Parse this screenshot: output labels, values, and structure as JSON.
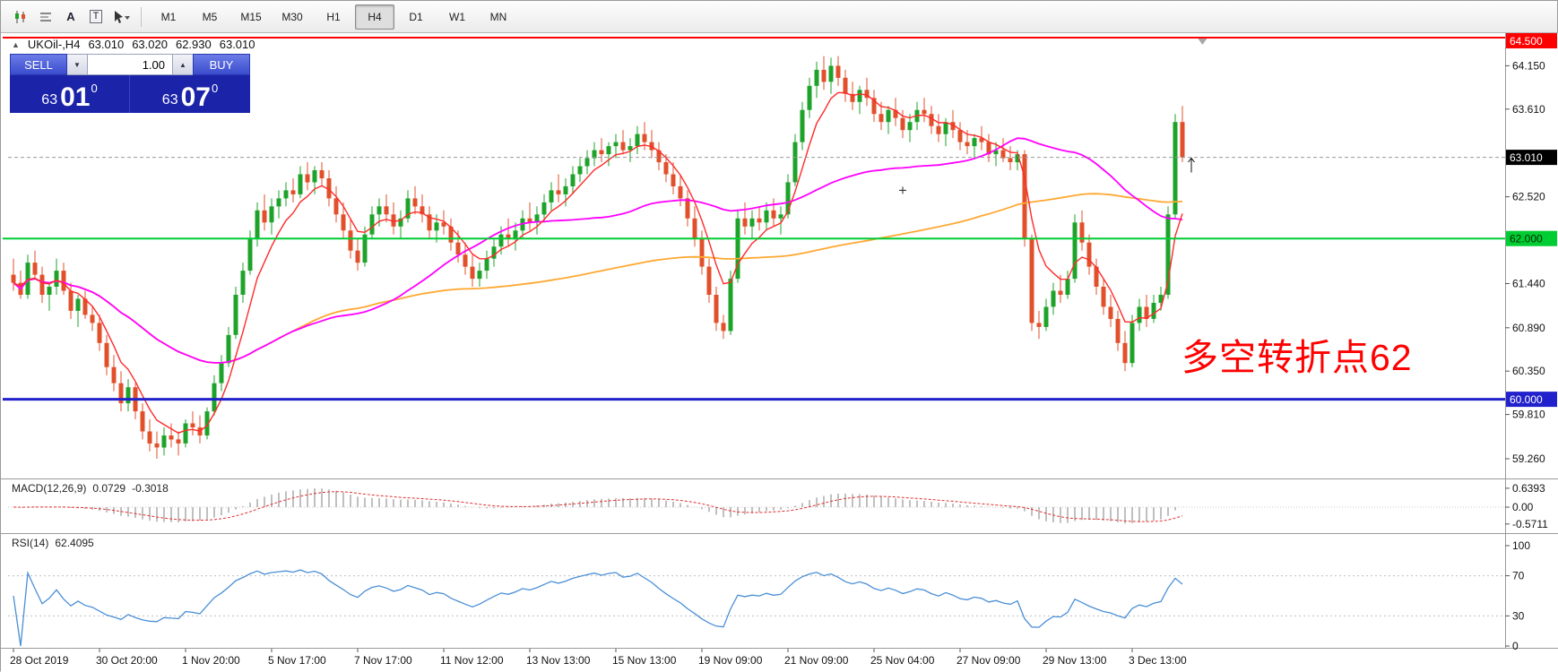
{
  "toolbar": {
    "tool_icons": [
      {
        "name": "candlestick-chart-icon"
      },
      {
        "name": "bar-chart-icon"
      },
      {
        "name": "text-tool-icon",
        "glyph": "A"
      },
      {
        "name": "textbox-tool-icon",
        "glyph": "T"
      },
      {
        "name": "cursor-tool-icon"
      }
    ],
    "timeframes": [
      {
        "label": "M1",
        "active": false
      },
      {
        "label": "M5",
        "active": false
      },
      {
        "label": "M15",
        "active": false
      },
      {
        "label": "M30",
        "active": false
      },
      {
        "label": "H1",
        "active": false
      },
      {
        "label": "H4",
        "active": true
      },
      {
        "label": "D1",
        "active": false
      },
      {
        "label": "W1",
        "active": false
      },
      {
        "label": "MN",
        "active": false
      }
    ]
  },
  "chart": {
    "symbol": "UKOil-,H4",
    "ohlc": {
      "open": "63.010",
      "high": "63.020",
      "low": "62.930",
      "close": "63.010"
    },
    "trade_panel": {
      "sell_label": "SELL",
      "buy_label": "BUY",
      "volume": "1.00",
      "bid": {
        "prefix": "63",
        "big": "01",
        "sup": "0"
      },
      "ask": {
        "prefix": "63",
        "big": "07",
        "sup": "0"
      }
    },
    "annotation": {
      "text": "多空转折点62",
      "color": "#ff0000"
    },
    "hlines": [
      {
        "price": 64.5,
        "color": "#ff0000",
        "w": 2
      },
      {
        "price": 62.0,
        "color": "#00cc33",
        "w": 2
      },
      {
        "price": 60.0,
        "color": "#2222cc",
        "w": 3
      }
    ],
    "bid_line": {
      "price": 63.01,
      "color": "#999999"
    },
    "price_axis": {
      "ticks": [
        {
          "price": 64.15,
          "label": "64.150"
        },
        {
          "price": 63.61,
          "label": "63.610"
        },
        {
          "price": 62.52,
          "label": "62.520"
        },
        {
          "price": 61.44,
          "label": "61.440"
        },
        {
          "price": 60.89,
          "label": "60.890"
        },
        {
          "price": 60.35,
          "label": "60.350"
        },
        {
          "price": 59.81,
          "label": "59.810"
        },
        {
          "price": 59.26,
          "label": "59.260"
        }
      ],
      "badges": [
        {
          "price": 64.5,
          "label": "64.500",
          "bg": "#ff0000",
          "fg": "#ffffff"
        },
        {
          "price": 63.01,
          "label": "63.010",
          "bg": "#000000",
          "fg": "#ffffff"
        },
        {
          "price": 62.0,
          "label": "62.000",
          "bg": "#00cc33",
          "fg": "#002b00"
        },
        {
          "price": 60.0,
          "label": "60.000",
          "bg": "#2222cc",
          "fg": "#ffffff"
        }
      ]
    },
    "markers": [
      {
        "type": "up-arrow",
        "candle": 163,
        "price": 63.0
      },
      {
        "type": "cross",
        "candle": 124,
        "price": 62.6
      },
      {
        "type": "shift-triangle",
        "x_candle": 165.8
      }
    ],
    "colors": {
      "up": "#1ea32a",
      "down": "#e1502b",
      "ma_fast": "#ff2a2a",
      "ma_mid": "#ff00ff",
      "ma_slow": "#ffa832",
      "macd_hist": "#c0c0c0",
      "macd_signal": "#e03030",
      "rsi": "#4a8fd6"
    }
  },
  "macd": {
    "title": "MACD(12,26,9)",
    "value_hist": "0.0729",
    "value_signal": "-0.3018",
    "fast": 12,
    "slow": 26,
    "signal": 9,
    "axis": [
      {
        "v": 0.6393,
        "label": "0.6393"
      },
      {
        "v": 0,
        "label": "0.00"
      },
      {
        "v": -0.5711,
        "label": "-0.5711"
      }
    ]
  },
  "rsi": {
    "title": "RSI(14)",
    "value": "62.4095",
    "period": 14,
    "levels": [
      70,
      30
    ],
    "axis": [
      {
        "v": 100,
        "label": "100"
      },
      {
        "v": 70,
        "label": "70"
      },
      {
        "v": 30,
        "label": "30"
      },
      {
        "v": 0,
        "label": "0"
      }
    ]
  },
  "chart_data": {
    "type": "candlestick",
    "symbol": "UKOil-",
    "timeframe": "H4",
    "ohlc_format": "[open, high, low, close]",
    "time_labels": [
      {
        "i": 0,
        "label": "28 Oct 2019"
      },
      {
        "i": 12,
        "label": "30 Oct 20:00"
      },
      {
        "i": 24,
        "label": "1 Nov 20:00"
      },
      {
        "i": 36,
        "label": "5 Nov 17:00"
      },
      {
        "i": 48,
        "label": "7 Nov 17:00"
      },
      {
        "i": 60,
        "label": "11 Nov 12:00"
      },
      {
        "i": 72,
        "label": "13 Nov 13:00"
      },
      {
        "i": 84,
        "label": "15 Nov 13:00"
      },
      {
        "i": 96,
        "label": "19 Nov 09:00"
      },
      {
        "i": 108,
        "label": "21 Nov 09:00"
      },
      {
        "i": 120,
        "label": "25 Nov 04:00"
      },
      {
        "i": 132,
        "label": "27 Nov 09:00"
      },
      {
        "i": 144,
        "label": "29 Nov 13:00"
      },
      {
        "i": 156,
        "label": "3 Dec 13:00"
      }
    ],
    "candles": [
      [
        61.55,
        61.75,
        61.35,
        61.45
      ],
      [
        61.45,
        61.6,
        61.25,
        61.3
      ],
      [
        61.3,
        61.8,
        61.25,
        61.7
      ],
      [
        61.7,
        61.85,
        61.5,
        61.55
      ],
      [
        61.55,
        61.65,
        61.2,
        61.3
      ],
      [
        61.3,
        61.45,
        61.1,
        61.4
      ],
      [
        61.4,
        61.75,
        61.3,
        61.6
      ],
      [
        61.6,
        61.7,
        61.3,
        61.35
      ],
      [
        61.35,
        61.45,
        61.0,
        61.1
      ],
      [
        61.1,
        61.3,
        60.9,
        61.25
      ],
      [
        61.25,
        61.35,
        61.0,
        61.05
      ],
      [
        61.05,
        61.15,
        60.85,
        60.95
      ],
      [
        60.95,
        61.05,
        60.6,
        60.7
      ],
      [
        60.7,
        60.8,
        60.3,
        60.4
      ],
      [
        60.4,
        60.55,
        60.1,
        60.2
      ],
      [
        60.2,
        60.35,
        59.85,
        59.95
      ],
      [
        59.95,
        60.25,
        59.85,
        60.15
      ],
      [
        60.15,
        60.2,
        59.75,
        59.85
      ],
      [
        59.85,
        59.95,
        59.5,
        59.6
      ],
      [
        59.6,
        59.75,
        59.35,
        59.45
      ],
      [
        59.45,
        59.6,
        59.26,
        59.4
      ],
      [
        59.4,
        59.65,
        59.3,
        59.55
      ],
      [
        59.55,
        59.7,
        59.4,
        59.5
      ],
      [
        59.5,
        59.6,
        59.3,
        59.45
      ],
      [
        59.45,
        59.75,
        59.4,
        59.7
      ],
      [
        59.7,
        59.85,
        59.55,
        59.65
      ],
      [
        59.65,
        59.8,
        59.45,
        59.55
      ],
      [
        59.55,
        59.9,
        59.5,
        59.85
      ],
      [
        59.85,
        60.3,
        59.8,
        60.2
      ],
      [
        60.2,
        60.55,
        60.1,
        60.45
      ],
      [
        60.45,
        60.9,
        60.4,
        60.8
      ],
      [
        60.8,
        61.4,
        60.75,
        61.3
      ],
      [
        61.3,
        61.7,
        61.2,
        61.6
      ],
      [
        61.6,
        62.1,
        61.55,
        62.0
      ],
      [
        62.0,
        62.45,
        61.9,
        62.35
      ],
      [
        62.35,
        62.55,
        62.1,
        62.2
      ],
      [
        62.2,
        62.5,
        62.05,
        62.4
      ],
      [
        62.4,
        62.6,
        62.25,
        62.5
      ],
      [
        62.5,
        62.7,
        62.4,
        62.6
      ],
      [
        62.6,
        62.75,
        62.45,
        62.55
      ],
      [
        62.55,
        62.9,
        62.5,
        62.8
      ],
      [
        62.8,
        62.95,
        62.6,
        62.7
      ],
      [
        62.7,
        62.9,
        62.55,
        62.85
      ],
      [
        62.85,
        62.95,
        62.65,
        62.75
      ],
      [
        62.75,
        62.85,
        62.4,
        62.5
      ],
      [
        62.5,
        62.65,
        62.2,
        62.3
      ],
      [
        62.3,
        62.45,
        62.0,
        62.1
      ],
      [
        62.1,
        62.25,
        61.75,
        61.85
      ],
      [
        61.85,
        62.0,
        61.6,
        61.7
      ],
      [
        61.7,
        62.15,
        61.65,
        62.05
      ],
      [
        62.05,
        62.4,
        62.0,
        62.3
      ],
      [
        62.3,
        62.5,
        62.15,
        62.4
      ],
      [
        62.4,
        62.55,
        62.2,
        62.3
      ],
      [
        62.3,
        62.45,
        62.05,
        62.15
      ],
      [
        62.15,
        62.35,
        62.0,
        62.25
      ],
      [
        62.25,
        62.6,
        62.2,
        62.5
      ],
      [
        62.5,
        62.65,
        62.3,
        62.4
      ],
      [
        62.4,
        62.55,
        62.2,
        62.3
      ],
      [
        62.3,
        62.4,
        62.0,
        62.1
      ],
      [
        62.1,
        62.3,
        61.95,
        62.2
      ],
      [
        62.2,
        62.35,
        62.05,
        62.15
      ],
      [
        62.15,
        62.25,
        61.85,
        61.95
      ],
      [
        61.95,
        62.1,
        61.7,
        61.8
      ],
      [
        61.8,
        61.95,
        61.55,
        61.65
      ],
      [
        61.65,
        61.8,
        61.4,
        61.5
      ],
      [
        61.5,
        61.7,
        61.4,
        61.6
      ],
      [
        61.6,
        61.85,
        61.5,
        61.75
      ],
      [
        61.75,
        62.0,
        61.65,
        61.9
      ],
      [
        61.9,
        62.15,
        61.8,
        62.05
      ],
      [
        62.05,
        62.25,
        61.9,
        62.0
      ],
      [
        62.0,
        62.2,
        61.85,
        62.1
      ],
      [
        62.1,
        62.35,
        62.0,
        62.25
      ],
      [
        62.25,
        62.45,
        62.1,
        62.2
      ],
      [
        62.2,
        62.4,
        62.05,
        62.3
      ],
      [
        62.3,
        62.55,
        62.2,
        62.45
      ],
      [
        62.45,
        62.7,
        62.35,
        62.6
      ],
      [
        62.6,
        62.8,
        62.45,
        62.55
      ],
      [
        62.55,
        62.75,
        62.4,
        62.65
      ],
      [
        62.65,
        62.9,
        62.55,
        62.8
      ],
      [
        62.8,
        63.0,
        62.7,
        62.9
      ],
      [
        62.9,
        63.1,
        62.8,
        63.0
      ],
      [
        63.0,
        63.2,
        62.9,
        63.1
      ],
      [
        63.1,
        63.25,
        62.95,
        63.05
      ],
      [
        63.05,
        63.2,
        62.9,
        63.15
      ],
      [
        63.15,
        63.3,
        63.0,
        63.2
      ],
      [
        63.2,
        63.35,
        63.05,
        63.1
      ],
      [
        63.1,
        63.25,
        62.95,
        63.15
      ],
      [
        63.15,
        63.4,
        63.05,
        63.3
      ],
      [
        63.3,
        63.45,
        63.1,
        63.2
      ],
      [
        63.2,
        63.35,
        63.0,
        63.1
      ],
      [
        63.1,
        63.2,
        62.85,
        62.95
      ],
      [
        62.95,
        63.05,
        62.7,
        62.8
      ],
      [
        62.8,
        62.95,
        62.55,
        62.65
      ],
      [
        62.65,
        62.8,
        62.4,
        62.5
      ],
      [
        62.5,
        62.6,
        62.15,
        62.25
      ],
      [
        62.25,
        62.4,
        61.9,
        62.0
      ],
      [
        62.0,
        62.1,
        61.55,
        61.65
      ],
      [
        61.65,
        61.75,
        61.2,
        61.3
      ],
      [
        61.3,
        61.4,
        60.85,
        60.95
      ],
      [
        60.95,
        61.05,
        60.75,
        60.85
      ],
      [
        60.85,
        61.6,
        60.8,
        61.5
      ],
      [
        61.5,
        62.35,
        61.45,
        62.25
      ],
      [
        62.25,
        62.45,
        62.05,
        62.15
      ],
      [
        62.15,
        62.35,
        62.0,
        62.25
      ],
      [
        62.25,
        62.4,
        62.1,
        62.2
      ],
      [
        62.2,
        62.45,
        62.1,
        62.35
      ],
      [
        62.35,
        62.5,
        62.15,
        62.25
      ],
      [
        62.25,
        62.4,
        62.05,
        62.3
      ],
      [
        62.3,
        62.8,
        62.25,
        62.7
      ],
      [
        62.7,
        63.3,
        62.65,
        63.2
      ],
      [
        63.2,
        63.7,
        63.1,
        63.6
      ],
      [
        63.6,
        64.0,
        63.5,
        63.9
      ],
      [
        63.9,
        64.2,
        63.75,
        64.1
      ],
      [
        64.1,
        64.27,
        63.85,
        63.95
      ],
      [
        63.95,
        64.25,
        63.8,
        64.15
      ],
      [
        64.15,
        64.27,
        63.9,
        64.0
      ],
      [
        64.0,
        64.1,
        63.7,
        63.8
      ],
      [
        63.8,
        63.95,
        63.6,
        63.7
      ],
      [
        63.7,
        63.9,
        63.55,
        63.85
      ],
      [
        63.85,
        64.0,
        63.65,
        63.75
      ],
      [
        63.75,
        63.85,
        63.45,
        63.55
      ],
      [
        63.55,
        63.7,
        63.35,
        63.45
      ],
      [
        63.45,
        63.65,
        63.3,
        63.6
      ],
      [
        63.6,
        63.75,
        63.4,
        63.5
      ],
      [
        63.5,
        63.6,
        63.25,
        63.35
      ],
      [
        63.35,
        63.55,
        63.2,
        63.45
      ],
      [
        63.45,
        63.7,
        63.35,
        63.6
      ],
      [
        63.6,
        63.75,
        63.45,
        63.55
      ],
      [
        63.55,
        63.65,
        63.3,
        63.4
      ],
      [
        63.4,
        63.55,
        63.2,
        63.3
      ],
      [
        63.3,
        63.5,
        63.15,
        63.45
      ],
      [
        63.45,
        63.6,
        63.25,
        63.35
      ],
      [
        63.35,
        63.45,
        63.1,
        63.2
      ],
      [
        63.2,
        63.35,
        63.05,
        63.15
      ],
      [
        63.15,
        63.3,
        63.0,
        63.25
      ],
      [
        63.25,
        63.4,
        63.1,
        63.2
      ],
      [
        63.2,
        63.3,
        62.95,
        63.05
      ],
      [
        63.05,
        63.2,
        62.9,
        63.1
      ],
      [
        63.1,
        63.25,
        62.95,
        63.0
      ],
      [
        63.0,
        63.15,
        62.85,
        62.95
      ],
      [
        62.95,
        63.1,
        62.85,
        63.05
      ],
      [
        63.05,
        63.1,
        61.9,
        62.0
      ],
      [
        62.0,
        62.05,
        60.85,
        60.95
      ],
      [
        60.95,
        61.1,
        60.75,
        60.9
      ],
      [
        60.9,
        61.25,
        60.85,
        61.15
      ],
      [
        61.15,
        61.45,
        61.05,
        61.35
      ],
      [
        61.35,
        61.55,
        61.2,
        61.3
      ],
      [
        61.3,
        61.6,
        61.25,
        61.5
      ],
      [
        61.5,
        62.3,
        61.45,
        62.2
      ],
      [
        62.2,
        62.35,
        61.85,
        61.95
      ],
      [
        61.95,
        62.05,
        61.55,
        61.65
      ],
      [
        61.65,
        61.75,
        61.3,
        61.4
      ],
      [
        61.4,
        61.5,
        61.05,
        61.15
      ],
      [
        61.15,
        61.3,
        60.9,
        61.0
      ],
      [
        61.0,
        61.1,
        60.6,
        60.7
      ],
      [
        60.7,
        60.85,
        60.35,
        60.45
      ],
      [
        60.45,
        61.05,
        60.4,
        60.95
      ],
      [
        60.95,
        61.25,
        60.85,
        61.15
      ],
      [
        61.15,
        61.3,
        60.9,
        61.0
      ],
      [
        61.0,
        61.3,
        60.95,
        61.2
      ],
      [
        61.2,
        61.4,
        61.1,
        61.3
      ],
      [
        61.3,
        62.4,
        61.25,
        62.3
      ],
      [
        62.3,
        63.55,
        62.25,
        63.45
      ],
      [
        63.45,
        63.65,
        62.95,
        63.01
      ]
    ]
  }
}
